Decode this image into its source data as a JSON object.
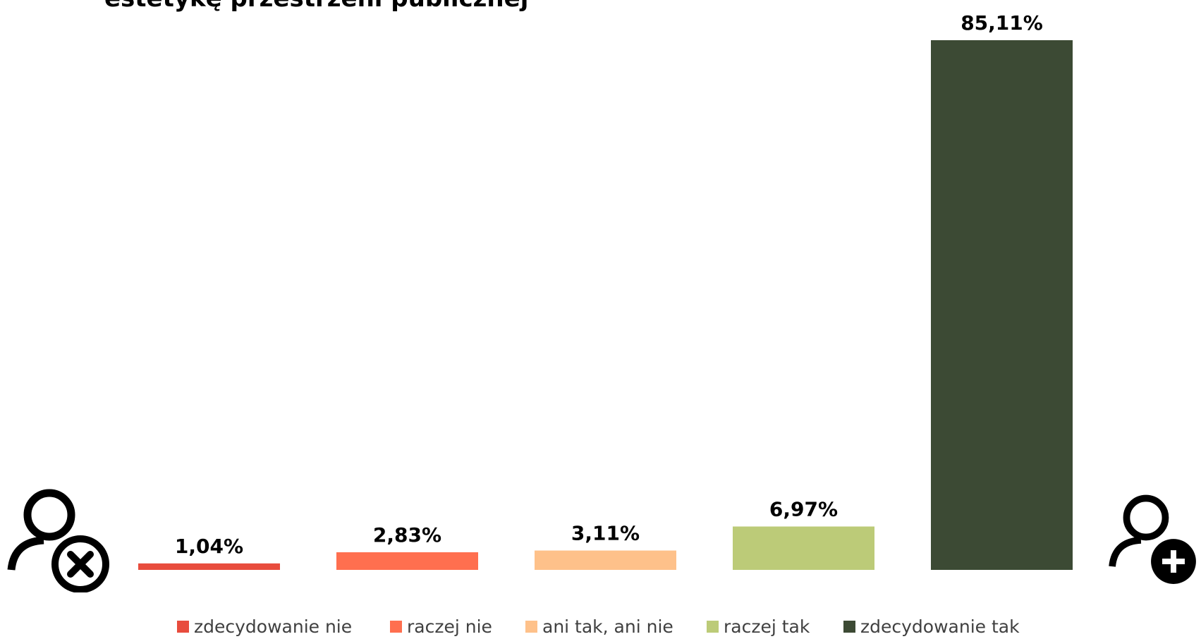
{
  "chart_data": {
    "type": "bar",
    "title": "estetykę przestrzeni publicznej",
    "categories": [
      "zdecydowanie nie",
      "raczej nie",
      "ani tak, ani nie",
      "raczej tak",
      "zdecydowanie tak"
    ],
    "values": [
      1.04,
      2.83,
      3.11,
      6.97,
      85.11
    ],
    "data_labels": [
      "1,04%",
      "2,83%",
      "3,11%",
      "6,97%",
      "85,11%"
    ],
    "colors": [
      "#e84c3d",
      "#ff6f4f",
      "#fec18a",
      "#bccb78",
      "#3c4a34"
    ],
    "unit": "%",
    "ylim": [
      0,
      85.11
    ],
    "grid": false,
    "legend": "bottom"
  },
  "icons": {
    "left": "user-remove-icon",
    "right": "user-add-icon"
  }
}
